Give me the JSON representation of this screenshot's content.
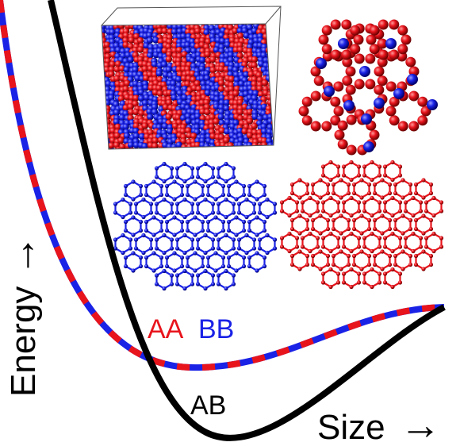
{
  "axes": {
    "ylabel": "Energy",
    "xlabel": "Size",
    "arrow_glyph": "→"
  },
  "curves": {
    "like_label_a": "AA",
    "like_label_b": "BB",
    "unlike_label": "AB"
  },
  "colors": {
    "red": "#e8141c",
    "blue": "#1a22e6",
    "black": "#000000"
  },
  "insets": [
    {
      "name": "binary-crystal-cube",
      "description_icon": "cube-lattice-icon"
    },
    {
      "name": "cluster-red-blue",
      "description_icon": "sphere-cluster-icon"
    },
    {
      "name": "blue-network",
      "description_icon": "network-icon"
    },
    {
      "name": "red-network",
      "description_icon": "network-icon"
    }
  ]
}
